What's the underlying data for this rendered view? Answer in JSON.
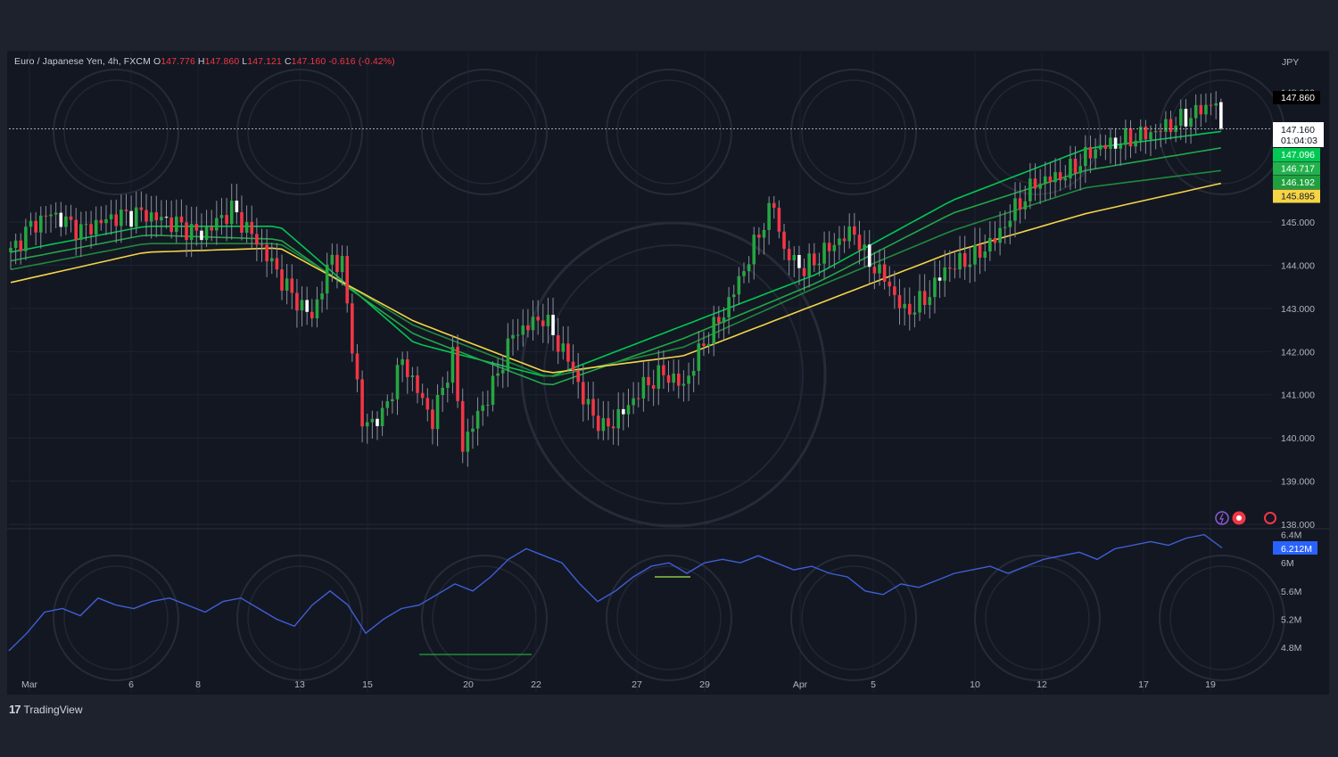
{
  "legend": {
    "symbol": "Euro / Japanese Yen, 4h, FXCM",
    "open_label": "O",
    "open": "147.776",
    "high_label": "H",
    "high": "147.860",
    "low_label": "L",
    "low": "147.121",
    "close_label": "C",
    "close": "147.160",
    "change": "-0.616 (-0.42%)"
  },
  "brand": {
    "logo": "17",
    "name": "TradingView"
  },
  "colors": {
    "background": "#131722",
    "frame": "#1e222d",
    "up": "#26a641",
    "down": "#f23645",
    "volume_line": "#3f5fd6",
    "ema_yellow": "#f5d547",
    "grid": "#1f2433"
  },
  "chart_data": {
    "type": "candlestick",
    "instrument": "Euro / Japanese Yen",
    "timeframe": "4h",
    "price_axis": {
      "currency": "JPY",
      "ticks": [
        "145.000",
        "144.000",
        "143.000",
        "142.000",
        "141.000",
        "140.000",
        "139.000",
        "138.000"
      ],
      "range": [
        138.0,
        148.3
      ],
      "partial_top_label": "148.000"
    },
    "x_axis": {
      "ticks": [
        "Mar",
        "6",
        "8",
        "13",
        "15",
        "20",
        "22",
        "27",
        "29",
        "Apr",
        "5",
        "10",
        "12",
        "17",
        "19"
      ]
    },
    "price_labels": {
      "high": "147.860",
      "last": "147.160",
      "countdown": "01:04:03",
      "ema_values": [
        "147.096",
        "146.717",
        "146.192",
        "145.895"
      ]
    },
    "anchors": [
      [
        0,
        144.3
      ],
      [
        4,
        144.9
      ],
      [
        8,
        145.2
      ],
      [
        14,
        144.8
      ],
      [
        20,
        145.1
      ],
      [
        26,
        145.2
      ],
      [
        32,
        145.0
      ],
      [
        38,
        144.7
      ],
      [
        44,
        145.3
      ],
      [
        50,
        144.4
      ],
      [
        56,
        143.3
      ],
      [
        60,
        142.8
      ],
      [
        64,
        144.2
      ],
      [
        66,
        144.0
      ],
      [
        70,
        140.3
      ],
      [
        74,
        140.5
      ],
      [
        78,
        141.8
      ],
      [
        84,
        140.4
      ],
      [
        88,
        141.9
      ],
      [
        90,
        139.8
      ],
      [
        92,
        140.3
      ],
      [
        96,
        141.2
      ],
      [
        100,
        142.4
      ],
      [
        106,
        142.8
      ],
      [
        112,
        141.6
      ],
      [
        114,
        140.9
      ],
      [
        118,
        140.2
      ],
      [
        122,
        140.6
      ],
      [
        126,
        141.2
      ],
      [
        130,
        141.5
      ],
      [
        134,
        141.2
      ],
      [
        138,
        142.2
      ],
      [
        142,
        142.9
      ],
      [
        146,
        143.9
      ],
      [
        150,
        145.0
      ],
      [
        152,
        145.4
      ],
      [
        154,
        144.3
      ],
      [
        158,
        143.9
      ],
      [
        164,
        144.5
      ],
      [
        168,
        144.8
      ],
      [
        170,
        144.2
      ],
      [
        174,
        143.7
      ],
      [
        178,
        142.9
      ],
      [
        182,
        143.2
      ],
      [
        186,
        143.9
      ],
      [
        192,
        144.2
      ],
      [
        196,
        144.6
      ],
      [
        200,
        145.3
      ],
      [
        204,
        145.9
      ],
      [
        210,
        146.1
      ],
      [
        216,
        146.7
      ],
      [
        222,
        146.9
      ],
      [
        228,
        147.1
      ],
      [
        234,
        147.4
      ],
      [
        240,
        147.8
      ],
      [
        241,
        147.16
      ]
    ],
    "moving_averages": [
      {
        "color": "#00c853",
        "values": [
          144.3,
          144.9,
          144.9,
          142.2,
          141.4,
          142.6,
          143.8,
          145.5,
          146.7,
          147.096
        ]
      },
      {
        "color": "#22a84a",
        "values": [
          144.1,
          144.7,
          144.6,
          142.4,
          141.2,
          142.3,
          143.6,
          145.2,
          146.2,
          146.717
        ]
      },
      {
        "color": "#1f8a3e",
        "values": [
          143.9,
          144.5,
          144.5,
          142.6,
          141.4,
          142.1,
          143.5,
          144.8,
          145.8,
          146.192
        ]
      },
      {
        "color": "#f5d547",
        "values": [
          143.6,
          144.3,
          144.4,
          142.7,
          141.5,
          141.9,
          143.1,
          144.3,
          145.2,
          145.895
        ]
      }
    ],
    "volume": {
      "ticks": [
        "6.4M",
        "6M",
        "5.6M",
        "5.2M",
        "4.8M"
      ],
      "range": [
        4.6,
        6.6
      ],
      "last": "6.212M",
      "series": [
        4.75,
        5.0,
        5.3,
        5.35,
        5.25,
        5.5,
        5.4,
        5.35,
        5.45,
        5.5,
        5.4,
        5.3,
        5.45,
        5.5,
        5.35,
        5.2,
        5.1,
        5.4,
        5.6,
        5.4,
        5.0,
        5.2,
        5.35,
        5.4,
        5.55,
        5.7,
        5.6,
        5.8,
        6.05,
        6.2,
        6.1,
        6.0,
        5.7,
        5.45,
        5.6,
        5.8,
        5.95,
        6.0,
        5.85,
        6.0,
        6.05,
        6.0,
        6.1,
        6.0,
        5.9,
        5.95,
        5.85,
        5.8,
        5.6,
        5.55,
        5.7,
        5.65,
        5.75,
        5.85,
        5.9,
        5.95,
        5.85,
        5.95,
        6.05,
        6.1,
        6.15,
        6.05,
        6.2,
        6.25,
        6.3,
        6.25,
        6.35,
        6.4,
        6.212
      ]
    }
  }
}
